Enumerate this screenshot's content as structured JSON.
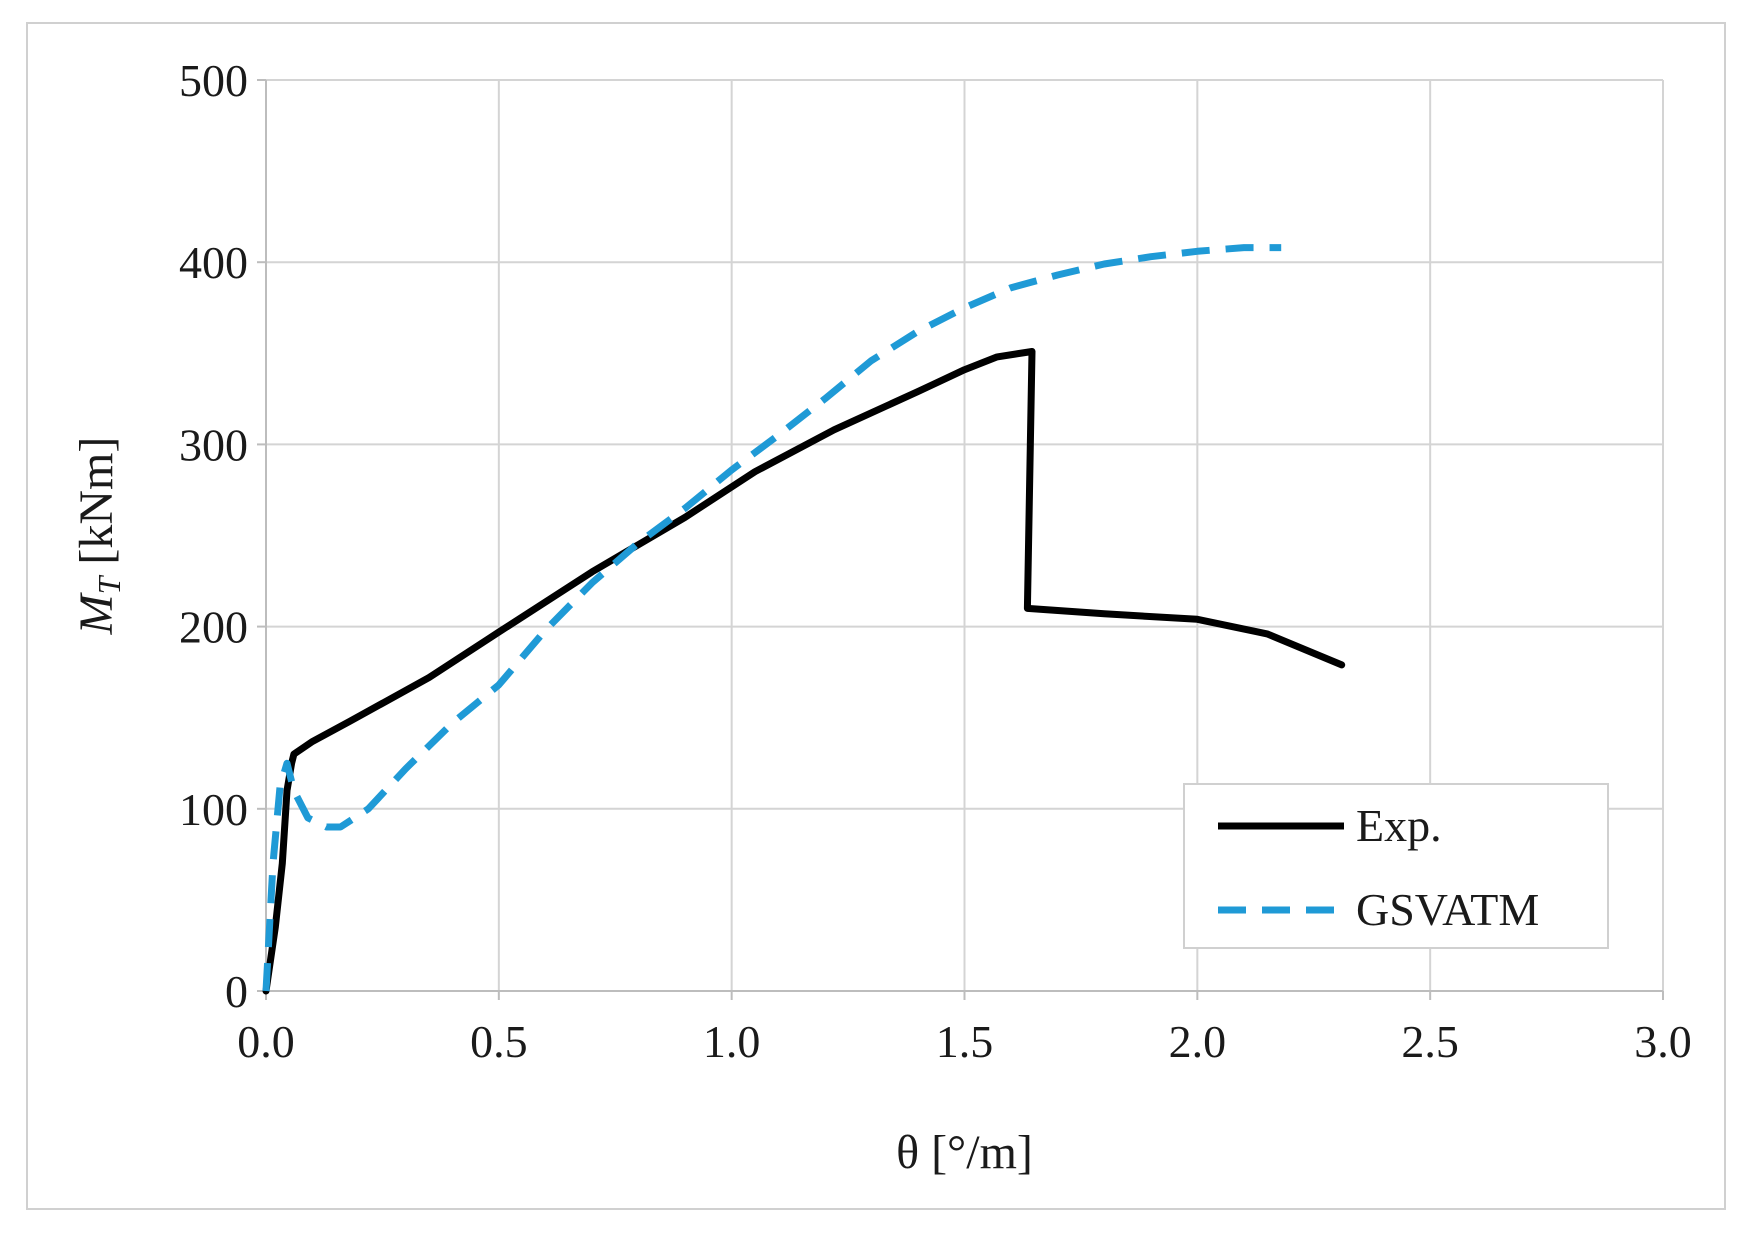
{
  "chart_data": {
    "type": "line",
    "title": "",
    "xlabel": "θ [°/m]",
    "ylabel": {
      "main": "M",
      "subscript": "T",
      "unit": " [kNm]"
    },
    "xlim": [
      0,
      3.0
    ],
    "ylim": [
      0,
      500
    ],
    "xticks": [
      {
        "value": 0.0,
        "label": "0.0"
      },
      {
        "value": 0.5,
        "label": "0.5"
      },
      {
        "value": 1.0,
        "label": "1.0"
      },
      {
        "value": 1.5,
        "label": "1.5"
      },
      {
        "value": 2.0,
        "label": "2.0"
      },
      {
        "value": 2.5,
        "label": "2.5"
      },
      {
        "value": 3.0,
        "label": "3.0"
      }
    ],
    "yticks": [
      {
        "value": 0,
        "label": "0"
      },
      {
        "value": 100,
        "label": "100"
      },
      {
        "value": 200,
        "label": "200"
      },
      {
        "value": 300,
        "label": "300"
      },
      {
        "value": 400,
        "label": "400"
      },
      {
        "value": 500,
        "label": "500"
      }
    ],
    "grid": true,
    "legend_position": "bottom-right",
    "series": [
      {
        "name": "Exp.",
        "color": "#000000",
        "style": "solid",
        "x": [
          0.0,
          0.02,
          0.035,
          0.045,
          0.055,
          0.06,
          0.1,
          0.18,
          0.35,
          0.5,
          0.7,
          0.9,
          1.05,
          1.22,
          1.4,
          1.5,
          1.57,
          1.645,
          1.635,
          1.8,
          2.0,
          2.15,
          2.31
        ],
        "y": [
          0,
          35,
          70,
          110,
          125,
          130,
          137,
          148,
          172,
          197,
          230,
          260,
          285,
          308,
          329,
          341,
          348,
          351,
          210,
          207,
          204,
          196,
          179
        ]
      },
      {
        "name": "GSVATM",
        "color": "#1f9ad6",
        "style": "dashed",
        "x": [
          0.0,
          0.015,
          0.03,
          0.045,
          0.06,
          0.09,
          0.13,
          0.16,
          0.22,
          0.3,
          0.4,
          0.5,
          0.6,
          0.7,
          0.8,
          0.9,
          1.0,
          1.1,
          1.2,
          1.3,
          1.4,
          1.5,
          1.6,
          1.7,
          1.8,
          1.9,
          2.0,
          2.1,
          2.18
        ],
        "y": [
          0,
          70,
          112,
          125,
          110,
          95,
          90,
          90,
          100,
          122,
          147,
          168,
          198,
          224,
          246,
          265,
          286,
          305,
          325,
          346,
          362,
          375,
          386,
          393,
          399,
          403,
          406,
          408,
          408
        ]
      }
    ]
  }
}
